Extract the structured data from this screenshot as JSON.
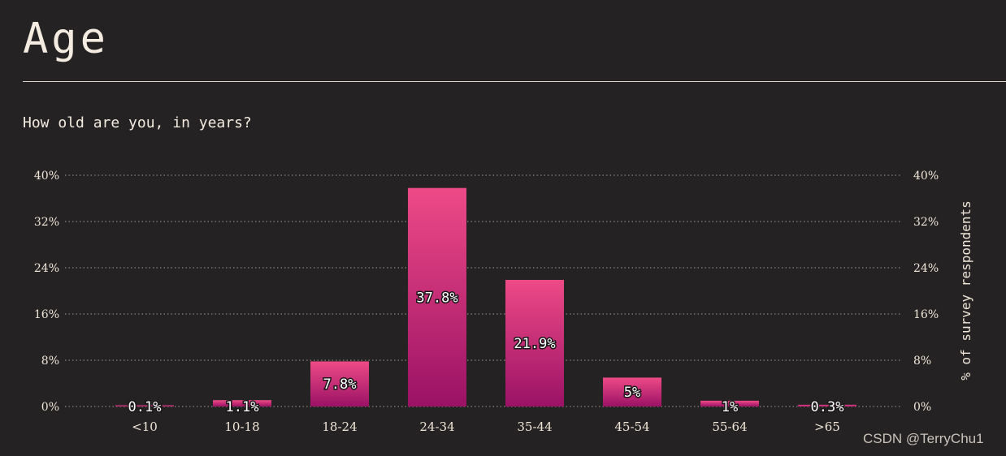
{
  "page": {
    "title": "Age",
    "question": "How old are you, in years?",
    "watermark": "CSDN @TerryChu1"
  },
  "colors": {
    "background": "#252223",
    "bar_top": "#ee4a87",
    "bar_bottom": "#9b1265",
    "grid": "#8d8680",
    "text": "#efe6d8"
  },
  "chart_data": {
    "type": "bar",
    "title": "",
    "xlabel": "",
    "ylabel": "% of survey respondents",
    "categories": [
      "<10",
      "10-18",
      "18-24",
      "24-34",
      "35-44",
      "45-54",
      "55-64",
      ">65"
    ],
    "values": [
      0.1,
      1.1,
      7.8,
      37.8,
      21.9,
      5,
      1,
      0.3
    ],
    "data_labels": [
      "0.1%",
      "1.1%",
      "7.8%",
      "37.8%",
      "21.9%",
      "5%",
      "1%",
      "0.3%"
    ],
    "ylim": [
      0,
      40
    ],
    "yticks": [
      0,
      8,
      16,
      24,
      32,
      40
    ],
    "ytick_labels": [
      "0%",
      "8%",
      "16%",
      "24%",
      "32%",
      "40%"
    ],
    "grid": true,
    "grid_style": "dotted",
    "y_axis_both_sides": true
  }
}
